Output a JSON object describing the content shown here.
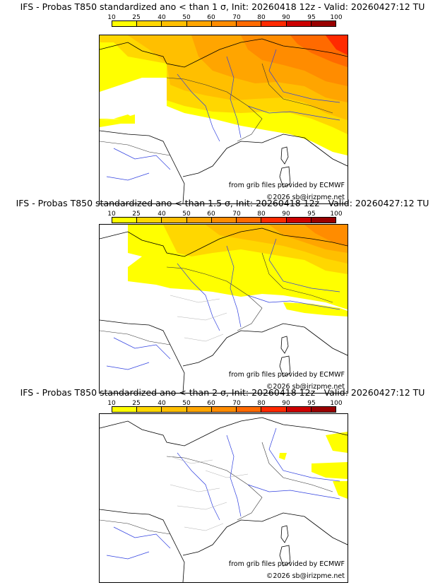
{
  "scale": {
    "ticks": [
      "10",
      "25",
      "40",
      "50",
      "60",
      "70",
      "80",
      "90",
      "95",
      "100"
    ],
    "colors": [
      "#ffff00",
      "#ffd700",
      "#ffbf00",
      "#ffa500",
      "#ff8c00",
      "#ff6a00",
      "#ff2a00",
      "#cc0000",
      "#990000",
      "#660000"
    ]
  },
  "credits": {
    "source": "from grib files provided by ECMWF",
    "copyright": "©2026 sb@irizpme.net"
  },
  "panels": [
    {
      "title": "IFS - Probas T850  standardized ano < than 1 σ, Init: 20260418 12z - Valid: 20260427:12 TU"
    },
    {
      "title": "IFS - Probas T850  standardized ano < than 1.5 σ, Init: 20260418 12z - Valid: 20260427:12 TU"
    },
    {
      "title": "IFS - Probas T850  standardized ano < than 2 σ, Init: 20260418 12z - Valid: 20260427:12 TU"
    }
  ]
}
